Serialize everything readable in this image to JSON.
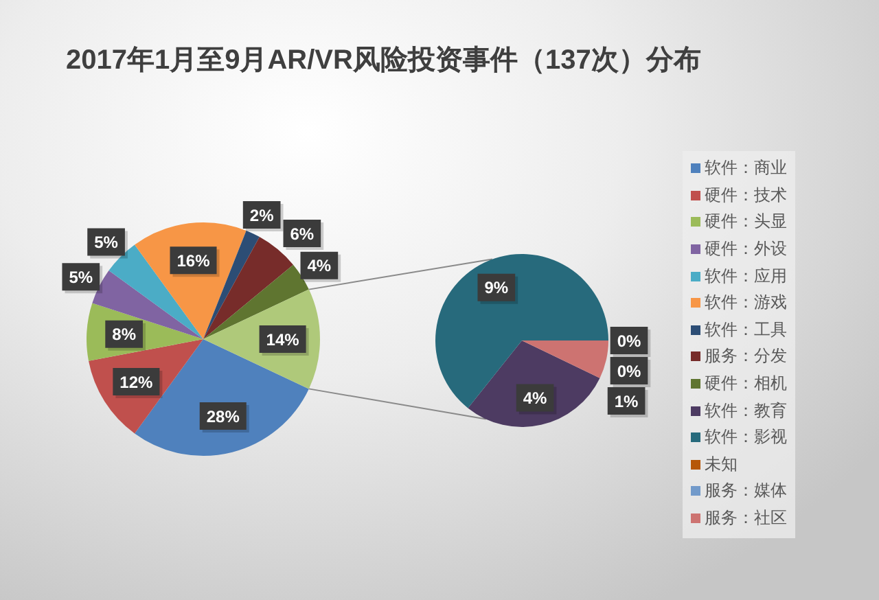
{
  "chart_data": [
    {
      "type": "pie",
      "title": "2017年1月至9月AR/VR风险投资事件（137次）分布",
      "categories": [
        "软件：商业",
        "硬件：技术",
        "硬件：头显",
        "硬件：外设",
        "软件：应用",
        "软件：游戏",
        "软件：工具",
        "服务：分发",
        "硬件：相机",
        null
      ],
      "values": [
        28,
        12,
        8,
        5,
        5,
        16,
        2,
        6,
        4,
        14
      ],
      "colors": [
        "#4f81bd",
        "#c0504d",
        "#9bbb59",
        "#8064a2",
        "#4bacc6",
        "#f79646",
        "#2c4d75",
        "#772c2a",
        "#5f7530",
        "#afc97a"
      ],
      "value_labels": [
        "28%",
        "12%",
        "8%",
        "5%",
        "5%",
        "16%",
        "2%",
        "6%",
        "4%",
        "14%"
      ],
      "legend": "right"
    },
    {
      "type": "pie",
      "categories": [
        "软件：教育",
        "软件：影视",
        "未知",
        "服务：媒体",
        "服务：社区"
      ],
      "values": [
        4,
        9,
        0,
        0,
        1
      ],
      "colors": [
        "#4d3b62",
        "#276a7c",
        "#b65708",
        "#729aca",
        "#cd7371"
      ],
      "value_labels": [
        "4%",
        "9%",
        "0%",
        "0%",
        "1%"
      ],
      "legend": "right"
    }
  ]
}
